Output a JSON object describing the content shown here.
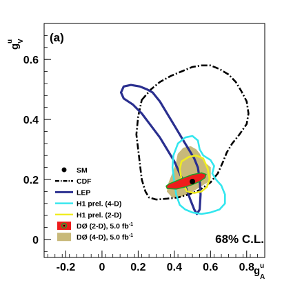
{
  "chart_data": {
    "type": "contour",
    "panel_label": "(a)",
    "annotation": "68% C.L.",
    "xlabel": {
      "main": "g",
      "sup": "u",
      "sub": "A"
    },
    "ylabel": {
      "main": "g",
      "sup": "u",
      "sub": "V"
    },
    "xlim": [
      -0.32,
      0.9
    ],
    "ylim": [
      -0.06,
      0.72
    ],
    "x_ticks": [
      -0.2,
      0,
      0.2,
      0.4,
      0.6,
      0.8
    ],
    "x_tick_labels": [
      "-0.2",
      "0",
      "0.2",
      "0.4",
      "0.6",
      "0.8"
    ],
    "y_ticks": [
      0,
      0.2,
      0.4,
      0.6
    ],
    "y_tick_labels": [
      "0",
      "0.2",
      "0.4",
      "0.6"
    ],
    "sm_point": {
      "x": 0.5,
      "y": 0.193
    },
    "legend_placement": "left",
    "legend": [
      {
        "key": "sm",
        "label": "SM"
      },
      {
        "key": "cdf",
        "label": "CDF"
      },
      {
        "key": "lep",
        "label": "LEP"
      },
      {
        "key": "h1_4d",
        "label": "H1 prel. (4-D)"
      },
      {
        "key": "h1_2d",
        "label": "H1 prel. (2-D)"
      },
      {
        "key": "d0_2d",
        "label": "DØ (2-D), 5.0 fb",
        "sup": "-1"
      },
      {
        "key": "d0_4d",
        "label": "DØ (4-D), 5.0 fb",
        "sup": "-1"
      }
    ],
    "series": [
      {
        "key": "d0_4d",
        "kind": "filled",
        "color": "#c8b97a",
        "points": [
          [
            0.39,
            0.14
          ],
          [
            0.45,
            0.145
          ],
          [
            0.5,
            0.16
          ],
          [
            0.54,
            0.175
          ],
          [
            0.58,
            0.19
          ],
          [
            0.6,
            0.205
          ],
          [
            0.6,
            0.24
          ],
          [
            0.56,
            0.26
          ],
          [
            0.54,
            0.285
          ],
          [
            0.52,
            0.3
          ],
          [
            0.49,
            0.31
          ],
          [
            0.45,
            0.305
          ],
          [
            0.42,
            0.285
          ],
          [
            0.41,
            0.255
          ],
          [
            0.39,
            0.22
          ],
          [
            0.37,
            0.19
          ],
          [
            0.36,
            0.16
          ]
        ]
      },
      {
        "key": "cdf",
        "kind": "line",
        "color": "#000000",
        "dash": "9 3 2 3",
        "points": [
          [
            0.22,
            0.465
          ],
          [
            0.27,
            0.5
          ],
          [
            0.32,
            0.525
          ],
          [
            0.38,
            0.545
          ],
          [
            0.44,
            0.56
          ],
          [
            0.5,
            0.575
          ],
          [
            0.55,
            0.58
          ],
          [
            0.6,
            0.58
          ],
          [
            0.65,
            0.568
          ],
          [
            0.7,
            0.55
          ],
          [
            0.74,
            0.525
          ],
          [
            0.77,
            0.495
          ],
          [
            0.8,
            0.46
          ],
          [
            0.81,
            0.42
          ],
          [
            0.8,
            0.385
          ],
          [
            0.76,
            0.35
          ],
          [
            0.72,
            0.32
          ],
          [
            0.69,
            0.29
          ],
          [
            0.67,
            0.26
          ],
          [
            0.64,
            0.22
          ],
          [
            0.6,
            0.19
          ],
          [
            0.54,
            0.165
          ],
          [
            0.48,
            0.15
          ],
          [
            0.42,
            0.14
          ],
          [
            0.36,
            0.136
          ],
          [
            0.3,
            0.133
          ],
          [
            0.26,
            0.14
          ],
          [
            0.24,
            0.16
          ],
          [
            0.22,
            0.2
          ],
          [
            0.21,
            0.25
          ],
          [
            0.2,
            0.3
          ],
          [
            0.19,
            0.35
          ],
          [
            0.2,
            0.41
          ],
          [
            0.22,
            0.465
          ]
        ]
      },
      {
        "key": "lep",
        "kind": "line",
        "color": "#2a2f8f",
        "points": [
          [
            0.525,
            0.085
          ],
          [
            0.54,
            0.1
          ],
          [
            0.545,
            0.15
          ],
          [
            0.54,
            0.2
          ],
          [
            0.53,
            0.24
          ],
          [
            0.51,
            0.27
          ],
          [
            0.48,
            0.3
          ],
          [
            0.44,
            0.34
          ],
          [
            0.4,
            0.38
          ],
          [
            0.36,
            0.42
          ],
          [
            0.32,
            0.46
          ],
          [
            0.28,
            0.49
          ],
          [
            0.25,
            0.5
          ],
          [
            0.21,
            0.51
          ],
          [
            0.16,
            0.515
          ],
          [
            0.12,
            0.51
          ],
          [
            0.105,
            0.49
          ],
          [
            0.12,
            0.47
          ],
          [
            0.17,
            0.45
          ],
          [
            0.22,
            0.42
          ],
          [
            0.27,
            0.38
          ],
          [
            0.32,
            0.34
          ],
          [
            0.36,
            0.3
          ],
          [
            0.4,
            0.26
          ],
          [
            0.43,
            0.22
          ],
          [
            0.46,
            0.18
          ],
          [
            0.49,
            0.13
          ],
          [
            0.51,
            0.1
          ],
          [
            0.525,
            0.085
          ]
        ]
      },
      {
        "key": "h1_4d",
        "kind": "line",
        "color": "#33e6ee",
        "points": [
          [
            0.46,
            0.1
          ],
          [
            0.5,
            0.09
          ],
          [
            0.55,
            0.085
          ],
          [
            0.6,
            0.09
          ],
          [
            0.65,
            0.1
          ],
          [
            0.68,
            0.12
          ],
          [
            0.68,
            0.15
          ],
          [
            0.66,
            0.18
          ],
          [
            0.63,
            0.2
          ],
          [
            0.61,
            0.22
          ],
          [
            0.62,
            0.245
          ],
          [
            0.6,
            0.265
          ],
          [
            0.56,
            0.28
          ],
          [
            0.54,
            0.3
          ],
          [
            0.53,
            0.33
          ],
          [
            0.5,
            0.345
          ],
          [
            0.46,
            0.34
          ],
          [
            0.42,
            0.32
          ],
          [
            0.395,
            0.28
          ],
          [
            0.39,
            0.24
          ],
          [
            0.4,
            0.19
          ],
          [
            0.41,
            0.15
          ],
          [
            0.43,
            0.115
          ],
          [
            0.46,
            0.1
          ]
        ]
      },
      {
        "key": "h1_2d",
        "kind": "line",
        "color": "#f0ec20",
        "points": [
          [
            0.47,
            0.16
          ],
          [
            0.51,
            0.155
          ],
          [
            0.55,
            0.16
          ],
          [
            0.58,
            0.175
          ],
          [
            0.595,
            0.2
          ],
          [
            0.585,
            0.235
          ],
          [
            0.56,
            0.27
          ],
          [
            0.52,
            0.28
          ],
          [
            0.48,
            0.275
          ],
          [
            0.44,
            0.26
          ],
          [
            0.43,
            0.235
          ],
          [
            0.44,
            0.2
          ],
          [
            0.47,
            0.16
          ]
        ]
      },
      {
        "key": "d0_2d",
        "kind": "filled",
        "color": "#ee1c1c",
        "border": "#1f9d2a",
        "points": [
          [
            0.36,
            0.17
          ],
          [
            0.41,
            0.168
          ],
          [
            0.46,
            0.175
          ],
          [
            0.5,
            0.183
          ],
          [
            0.54,
            0.193
          ],
          [
            0.57,
            0.206
          ],
          [
            0.575,
            0.217
          ],
          [
            0.55,
            0.222
          ],
          [
            0.5,
            0.216
          ],
          [
            0.45,
            0.205
          ],
          [
            0.41,
            0.195
          ],
          [
            0.37,
            0.185
          ],
          [
            0.355,
            0.178
          ]
        ]
      }
    ]
  }
}
